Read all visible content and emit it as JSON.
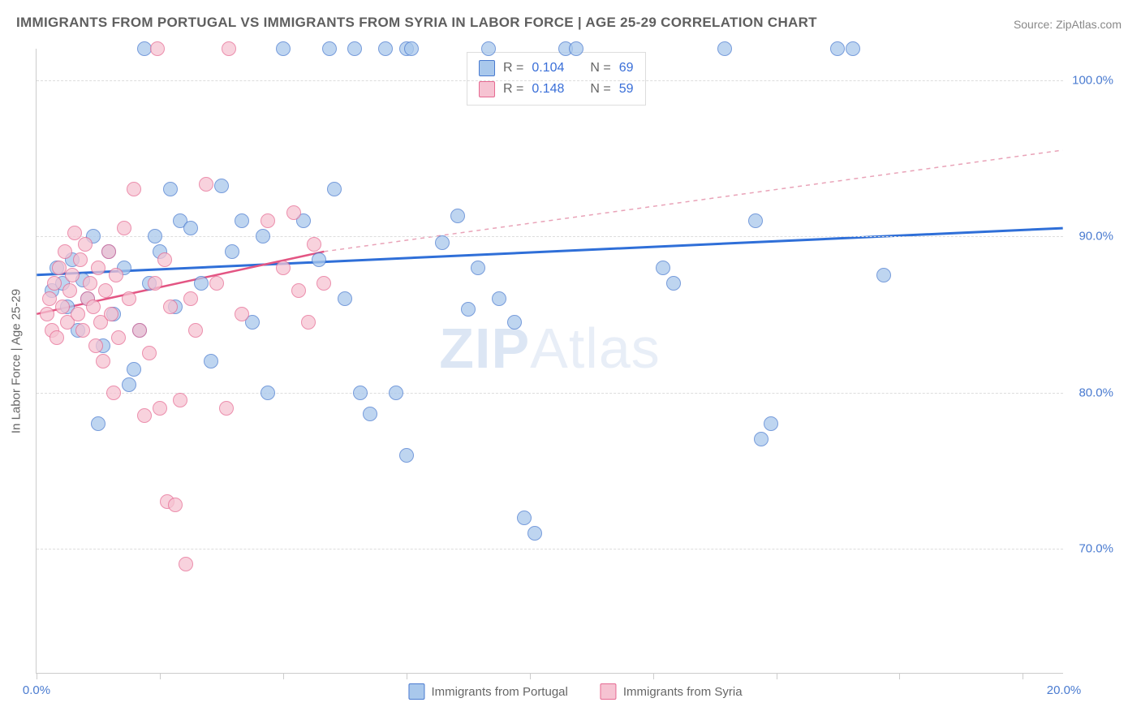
{
  "title": "IMMIGRANTS FROM PORTUGAL VS IMMIGRANTS FROM SYRIA IN LABOR FORCE | AGE 25-29 CORRELATION CHART",
  "source_label": "Source: ",
  "source_name": "ZipAtlas.com",
  "ylabel": "In Labor Force | Age 25-29",
  "watermark_a": "ZIP",
  "watermark_b": "Atlas",
  "chart": {
    "type": "scatter",
    "xlim": [
      0,
      20
    ],
    "ylim": [
      62,
      102
    ],
    "xtick_positions": [
      0,
      2.4,
      4.8,
      7.2,
      9.6,
      12,
      14.4,
      16.8,
      19.2
    ],
    "xtick_labels": {
      "0": "0.0%",
      "20": "20.0%"
    },
    "ytick_positions": [
      70,
      80,
      90,
      100
    ],
    "ytick_labels": [
      "70.0%",
      "80.0%",
      "90.0%",
      "100.0%"
    ],
    "background_color": "#ffffff",
    "grid_color": "#dddddd",
    "axis_color": "#cccccc",
    "series": [
      {
        "name": "Immigrants from Portugal",
        "color_fill": "#a9c8ec",
        "color_stroke": "#4a7bd0",
        "marker_radius": 9,
        "R": "0.104",
        "N": "69",
        "trend": {
          "x1": 0,
          "y1": 87.5,
          "x2": 20,
          "y2": 90.5,
          "color": "#2f6fd8",
          "width": 3,
          "dash": "none"
        },
        "points": [
          [
            0.3,
            86.5
          ],
          [
            0.4,
            88
          ],
          [
            0.5,
            87
          ],
          [
            0.6,
            85.5
          ],
          [
            0.7,
            88.5
          ],
          [
            0.8,
            84
          ],
          [
            0.9,
            87.2
          ],
          [
            1.0,
            86
          ],
          [
            1.1,
            90
          ],
          [
            1.2,
            78
          ],
          [
            1.3,
            83
          ],
          [
            1.4,
            89
          ],
          [
            1.5,
            85
          ],
          [
            1.7,
            88
          ],
          [
            1.8,
            80.5
          ],
          [
            1.9,
            81.5
          ],
          [
            2.0,
            84
          ],
          [
            2.1,
            102
          ],
          [
            2.2,
            87
          ],
          [
            2.3,
            90
          ],
          [
            2.4,
            89
          ],
          [
            2.6,
            93
          ],
          [
            2.7,
            85.5
          ],
          [
            2.8,
            91
          ],
          [
            3.0,
            90.5
          ],
          [
            3.2,
            87
          ],
          [
            3.4,
            82
          ],
          [
            3.6,
            93.2
          ],
          [
            3.8,
            89
          ],
          [
            4.0,
            91
          ],
          [
            4.2,
            84.5
          ],
          [
            4.4,
            90
          ],
          [
            4.5,
            80
          ],
          [
            4.8,
            102
          ],
          [
            5.2,
            91
          ],
          [
            5.5,
            88.5
          ],
          [
            5.8,
            93
          ],
          [
            6.0,
            86
          ],
          [
            5.7,
            102
          ],
          [
            6.3,
            80
          ],
          [
            6.2,
            102
          ],
          [
            6.5,
            78.6
          ],
          [
            6.8,
            102
          ],
          [
            7.0,
            80
          ],
          [
            7.2,
            76
          ],
          [
            7.2,
            102
          ],
          [
            7.3,
            102
          ],
          [
            7.9,
            89.6
          ],
          [
            8.2,
            91.3
          ],
          [
            8.4,
            85.3
          ],
          [
            8.6,
            88
          ],
          [
            8.8,
            102
          ],
          [
            9.0,
            86
          ],
          [
            9.3,
            84.5
          ],
          [
            9.5,
            72
          ],
          [
            9.7,
            71
          ],
          [
            10.3,
            102
          ],
          [
            10.5,
            102
          ],
          [
            12.2,
            88
          ],
          [
            12.4,
            87
          ],
          [
            13.4,
            102
          ],
          [
            14.0,
            91
          ],
          [
            14.1,
            77
          ],
          [
            14.3,
            78
          ],
          [
            15.6,
            102
          ],
          [
            15.9,
            102
          ],
          [
            16.5,
            87.5
          ]
        ]
      },
      {
        "name": "Immigrants from Syria",
        "color_fill": "#f6c3d2",
        "color_stroke": "#e66a92",
        "marker_radius": 9,
        "R": "0.148",
        "N": "59",
        "trend_solid": {
          "x1": 0,
          "y1": 85,
          "x2": 5.6,
          "y2": 89,
          "color": "#e35583",
          "width": 2.5,
          "dash": "none"
        },
        "trend_dash": {
          "x1": 5.6,
          "y1": 89,
          "x2": 20,
          "y2": 95.5,
          "color": "#e9a3b8",
          "width": 1.5,
          "dash": "5,5"
        },
        "points": [
          [
            0.2,
            85
          ],
          [
            0.25,
            86
          ],
          [
            0.3,
            84
          ],
          [
            0.35,
            87
          ],
          [
            0.4,
            83.5
          ],
          [
            0.45,
            88
          ],
          [
            0.5,
            85.5
          ],
          [
            0.55,
            89
          ],
          [
            0.6,
            84.5
          ],
          [
            0.65,
            86.5
          ],
          [
            0.7,
            87.5
          ],
          [
            0.75,
            90.2
          ],
          [
            0.8,
            85
          ],
          [
            0.85,
            88.5
          ],
          [
            0.9,
            84
          ],
          [
            0.95,
            89.5
          ],
          [
            1.0,
            86
          ],
          [
            1.05,
            87
          ],
          [
            1.1,
            85.5
          ],
          [
            1.15,
            83
          ],
          [
            1.2,
            88
          ],
          [
            1.25,
            84.5
          ],
          [
            1.3,
            82
          ],
          [
            1.35,
            86.5
          ],
          [
            1.4,
            89
          ],
          [
            1.45,
            85
          ],
          [
            1.5,
            80
          ],
          [
            1.55,
            87.5
          ],
          [
            1.6,
            83.5
          ],
          [
            1.7,
            90.5
          ],
          [
            1.8,
            86
          ],
          [
            1.9,
            93
          ],
          [
            2.0,
            84
          ],
          [
            2.1,
            78.5
          ],
          [
            2.2,
            82.5
          ],
          [
            2.3,
            87
          ],
          [
            2.35,
            102
          ],
          [
            2.4,
            79
          ],
          [
            2.5,
            88.5
          ],
          [
            2.55,
            73
          ],
          [
            2.6,
            85.5
          ],
          [
            2.7,
            72.8
          ],
          [
            2.8,
            79.5
          ],
          [
            2.9,
            69
          ],
          [
            3.0,
            86
          ],
          [
            3.1,
            84
          ],
          [
            3.3,
            93.3
          ],
          [
            3.5,
            87
          ],
          [
            3.7,
            79
          ],
          [
            3.75,
            102
          ],
          [
            4.0,
            85
          ],
          [
            4.5,
            91
          ],
          [
            4.8,
            88
          ],
          [
            5.0,
            91.5
          ],
          [
            5.1,
            86.5
          ],
          [
            5.3,
            84.5
          ],
          [
            5.4,
            89.5
          ],
          [
            5.6,
            87
          ]
        ]
      }
    ]
  },
  "legend_top": {
    "r_label": "R =",
    "n_label": "N ="
  },
  "legend_bottom": [
    {
      "swatch": "blue",
      "label": "Immigrants from Portugal"
    },
    {
      "swatch": "pink",
      "label": "Immigrants from Syria"
    }
  ]
}
